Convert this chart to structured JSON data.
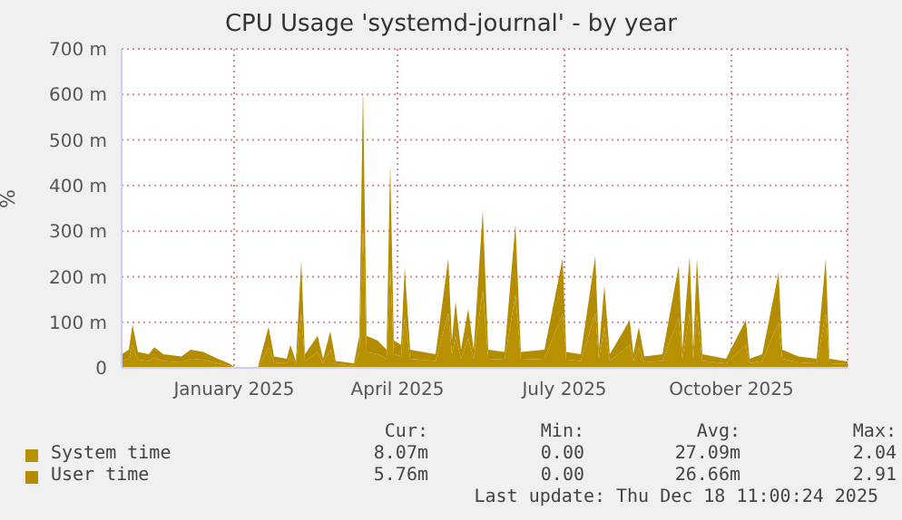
{
  "chart_data": {
    "type": "area",
    "title": "CPU Usage 'systemd-journal' - by year",
    "ylabel": "%",
    "stacked": true,
    "grid": true,
    "legend": "bottom",
    "marker": "none",
    "x": [
      "2024-11-13",
      "2024-11-17",
      "2024-11-19",
      "2024-11-22",
      "2024-11-28",
      "2024-12-01",
      "2024-12-06",
      "2024-12-16",
      "2024-12-21",
      "2024-12-28",
      "2025-01-05",
      "2025-01-11",
      "2025-01-15",
      "2025-01-27",
      "2025-01-29",
      "2025-02-02",
      "2025-02-05",
      "2025-02-12",
      "2025-02-14",
      "2025-02-17",
      "2025-02-20",
      "2025-02-22",
      "2025-03-01",
      "2025-03-04",
      "2025-03-08",
      "2025-03-11",
      "2025-03-21",
      "2025-03-24",
      "2025-03-26",
      "2025-03-28",
      "2025-04-03",
      "2025-04-08",
      "2025-04-10",
      "2025-04-12",
      "2025-04-16",
      "2025-04-18",
      "2025-04-21",
      "2025-05-05",
      "2025-05-12",
      "2025-05-14",
      "2025-05-16",
      "2025-05-19",
      "2025-05-23",
      "2025-05-26",
      "2025-05-31",
      "2025-06-03",
      "2025-06-12",
      "2025-06-18",
      "2025-06-21",
      "2025-07-04",
      "2025-07-14",
      "2025-07-16",
      "2025-07-24",
      "2025-08-01",
      "2025-08-03",
      "2025-08-06",
      "2025-08-09",
      "2025-08-20",
      "2025-08-22",
      "2025-08-25",
      "2025-08-28",
      "2025-09-07",
      "2025-09-16",
      "2025-09-18",
      "2025-09-22",
      "2025-09-24",
      "2025-09-26",
      "2025-09-29",
      "2025-10-12",
      "2025-10-23",
      "2025-10-25",
      "2025-11-01",
      "2025-11-10",
      "2025-11-12",
      "2025-11-21",
      "2025-12-01",
      "2025-12-06",
      "2025-12-08",
      "2025-12-18"
    ],
    "series": [
      {
        "name": "System time",
        "color": "#b89100",
        "values": [
          15,
          20,
          50,
          18,
          15,
          22,
          15,
          12,
          20,
          18,
          10,
          5,
          0,
          0,
          15,
          45,
          12,
          10,
          25,
          8,
          120,
          15,
          35,
          10,
          40,
          8,
          5,
          35,
          310,
          35,
          30,
          20,
          220,
          30,
          25,
          110,
          20,
          15,
          120,
          30,
          70,
          20,
          65,
          20,
          170,
          20,
          18,
          160,
          18,
          20,
          120,
          18,
          15,
          120,
          20,
          90,
          15,
          50,
          15,
          45,
          12,
          15,
          110,
          20,
          120,
          20,
          120,
          15,
          10,
          50,
          10,
          15,
          100,
          20,
          12,
          10,
          120,
          10,
          8
        ]
      },
      {
        "name": "User time",
        "color": "#b48c00",
        "values": [
          15,
          20,
          45,
          17,
          15,
          23,
          15,
          13,
          20,
          17,
          10,
          5,
          0,
          0,
          15,
          45,
          13,
          10,
          25,
          7,
          115,
          15,
          35,
          10,
          40,
          7,
          5,
          35,
          310,
          35,
          30,
          20,
          230,
          30,
          25,
          110,
          20,
          15,
          120,
          30,
          75,
          20,
          65,
          20,
          175,
          20,
          17,
          155,
          17,
          20,
          120,
          17,
          15,
          125,
          20,
          90,
          15,
          55,
          15,
          45,
          13,
          15,
          115,
          20,
          125,
          20,
          120,
          15,
          10,
          55,
          10,
          15,
          110,
          20,
          13,
          10,
          120,
          10,
          6
        ]
      }
    ],
    "xlim": [
      "2024-11-13",
      "2025-12-18"
    ],
    "xticks": [
      {
        "value": "2025-01-14",
        "label": "January 2025"
      },
      {
        "value": "2025-04-14",
        "label": "April 2025"
      },
      {
        "value": "2025-07-15",
        "label": "July 2025"
      },
      {
        "value": "2025-10-15",
        "label": "October 2025"
      }
    ],
    "ylim": [
      0,
      700
    ],
    "yticks": [
      0,
      {
        "value": 100,
        "label": "100 m"
      },
      {
        "value": 200,
        "label": "200 m"
      },
      {
        "value": 300,
        "label": "300 m"
      },
      {
        "value": 400,
        "label": "400 m"
      },
      {
        "value": 500,
        "label": "500 m"
      },
      {
        "value": 600,
        "label": "600 m"
      },
      {
        "value": 700,
        "label": "700 m"
      }
    ],
    "annotations": [
      "Cur:",
      "Min:",
      "Avg:",
      "Max:",
      "8.07m",
      "0.00",
      "27.09m",
      "2.04",
      "5.76m",
      "0.00",
      "26.66m",
      "2.91",
      "Last update: Thu Dec 18 11:00:24 2025"
    ]
  }
}
